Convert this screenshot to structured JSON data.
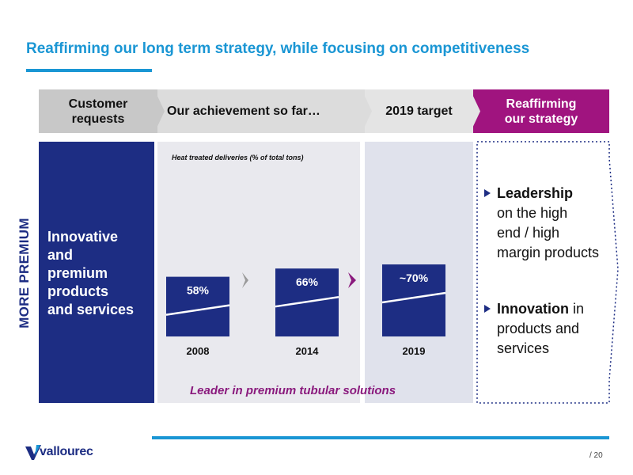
{
  "title": "Reaffirming our long term strategy, while focusing on competitiveness",
  "header": {
    "col1": [
      "Customer",
      "requests"
    ],
    "col2": "Our achievement so far…",
    "col3": "2019 target",
    "col4": [
      "Reaffirming",
      "our strategy"
    ]
  },
  "vertical_label": "MORE PREMIUM",
  "left_panel": [
    "Innovative",
    "and",
    "premium",
    "products",
    "and services"
  ],
  "chart_data": {
    "type": "bar",
    "title": "Heat treated deliveries (% of total tons)",
    "categories": [
      "2008",
      "2014",
      "2019"
    ],
    "values": [
      58,
      66,
      70
    ],
    "labels": [
      "58%",
      "66%",
      "~70%"
    ],
    "ylim": [
      0,
      100
    ],
    "bar_color": "#1d2d83"
  },
  "tagline": "Leader in premium tubular solutions",
  "strategy": {
    "bullet1": {
      "bold": "Leadership",
      "lines": [
        "on the high",
        "end / high",
        "margin products"
      ]
    },
    "bullet2": {
      "bold": "Innovation",
      "rest": " in",
      "lines": [
        "products and",
        "services"
      ]
    }
  },
  "footer": {
    "brand": "vallourec",
    "page": "/ 20"
  },
  "colors": {
    "accent_blue": "#1a96d4",
    "navy": "#1d2d83",
    "purple": "#a0147f"
  }
}
